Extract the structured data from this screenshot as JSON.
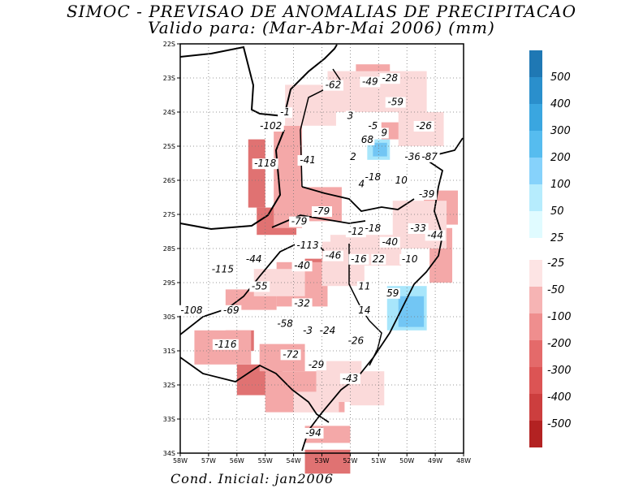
{
  "header": {
    "title": "SIMOC - PREVISAO DE ANOMALIAS DE PRECIPITACAO",
    "subtitle": "Valido para: (Mar-Abr-Mai 2006) (mm)"
  },
  "footer": {
    "text": "Cond. Inicial: jan2006"
  },
  "chart_data": {
    "type": "heatmap",
    "title": "SIMOC - PREVISAO DE ANOMALIAS DE PRECIPITACAO",
    "subtitle": "Valido para: (Mar-Abr-Mai 2006) (mm)",
    "xlim": [
      -58,
      -48
    ],
    "ylim": [
      -34,
      -22
    ],
    "lon_labels": [
      {
        "v": -58,
        "t": "58W"
      },
      {
        "v": -57,
        "t": "57W"
      },
      {
        "v": -56,
        "t": "56W"
      },
      {
        "v": -55,
        "t": "55W"
      },
      {
        "v": -54,
        "t": "54W"
      },
      {
        "v": -53,
        "t": "53W"
      },
      {
        "v": -52,
        "t": "52W"
      },
      {
        "v": -51,
        "t": "51W"
      },
      {
        "v": -50,
        "t": "50W"
      },
      {
        "v": -49,
        "t": "49W"
      },
      {
        "v": -48,
        "t": "48W"
      }
    ],
    "lat_labels": [
      {
        "v": -22,
        "t": "22S"
      },
      {
        "v": -23,
        "t": "23S"
      },
      {
        "v": -24,
        "t": "24S"
      },
      {
        "v": -25,
        "t": "25S"
      },
      {
        "v": -26,
        "t": "26S"
      },
      {
        "v": -27,
        "t": "27S"
      },
      {
        "v": -28,
        "t": "28S"
      },
      {
        "v": -29,
        "t": "29S"
      },
      {
        "v": -30,
        "t": "30S"
      },
      {
        "v": -31,
        "t": "31S"
      },
      {
        "v": -32,
        "t": "32S"
      },
      {
        "v": -33,
        "t": "33S"
      },
      {
        "v": -34,
        "t": "34S"
      }
    ],
    "colorbar": {
      "positive": [
        {
          "label": "500",
          "color": "#1f78b4"
        },
        {
          "label": "400",
          "color": "#2a8fcc"
        },
        {
          "label": "300",
          "color": "#3aa6e0"
        },
        {
          "label": "200",
          "color": "#56bcef"
        },
        {
          "label": "100",
          "color": "#86d2fb"
        },
        {
          "label": "50",
          "color": "#b6ecfd"
        },
        {
          "label": "25",
          "color": "#e0fbff"
        }
      ],
      "negative": [
        {
          "label": "-25",
          "color": "#fde4e4"
        },
        {
          "label": "-50",
          "color": "#f6b4b4"
        },
        {
          "label": "-100",
          "color": "#ef8e8e"
        },
        {
          "label": "-200",
          "color": "#e46a6a"
        },
        {
          "label": "-300",
          "color": "#dc5454"
        },
        {
          "label": "-400",
          "color": "#cc3e3e"
        },
        {
          "label": "-500",
          "color": "#b32222"
        }
      ]
    },
    "regions": [
      {
        "value": -100,
        "color": "#e07272",
        "cells": [
          [
            -55.6,
            -24.8,
            0.6,
            2.0
          ],
          [
            -55.3,
            -26.8,
            1.4,
            0.8
          ],
          [
            -56.0,
            -31.4,
            1.6,
            0.9
          ],
          [
            -56.4,
            -30.4,
            1.0,
            0.6
          ],
          [
            -53.6,
            -33.9,
            1.6,
            0.7
          ],
          [
            -53.6,
            -28.3,
            1.2,
            0.5
          ]
        ]
      },
      {
        "value": -50,
        "color": "#f4a8a8",
        "cells": [
          [
            -54.7,
            -24.4,
            1.0,
            3.0
          ],
          [
            -53.8,
            -26.2,
            1.5,
            1.0
          ],
          [
            -52.3,
            -23.1,
            1.5,
            0.9
          ],
          [
            -54.6,
            -28.4,
            1.8,
            1.3
          ],
          [
            -57.5,
            -30.4,
            2.0,
            1.0
          ],
          [
            -56.4,
            -29.2,
            1.8,
            0.6
          ],
          [
            -55.2,
            -30.8,
            1.6,
            0.8
          ],
          [
            -55.0,
            -31.6,
            2.8,
            1.2
          ],
          [
            -53.6,
            -33.2,
            1.6,
            0.5
          ],
          [
            -49.4,
            -26.3,
            1.2,
            1.0
          ],
          [
            -49.2,
            -27.4,
            0.8,
            1.6
          ],
          [
            -51.8,
            -22.6,
            1.2,
            0.5
          ],
          [
            -50.9,
            -24.3,
            1.2,
            0.5
          ]
        ]
      },
      {
        "value": -25,
        "color": "#fbdada",
        "cells": [
          [
            -54.3,
            -23.2,
            1.8,
            1.2
          ],
          [
            -52.8,
            -22.8,
            3.5,
            1.2
          ],
          [
            -50.3,
            -24.0,
            1.6,
            1.0
          ],
          [
            -50.5,
            -26.6,
            1.9,
            1.4
          ],
          [
            -52.7,
            -27.6,
            2.5,
            0.9
          ],
          [
            -53.0,
            -27.8,
            1.5,
            1.3
          ],
          [
            -53.2,
            -31.3,
            1.6,
            1.2
          ],
          [
            -52.0,
            -31.6,
            1.2,
            1.0
          ],
          [
            -54.0,
            -32.2,
            1.6,
            0.6
          ],
          [
            -55.4,
            -28.6,
            1.8,
            0.8
          ]
        ]
      },
      {
        "value": 50,
        "color": "#a8e6fb",
        "cells": [
          [
            -51.4,
            -24.8,
            0.8,
            0.6
          ],
          [
            -50.7,
            -29.1,
            1.4,
            1.3
          ]
        ]
      },
      {
        "value": 100,
        "color": "#72c6f4",
        "cells": [
          [
            -51.2,
            -24.9,
            0.5,
            0.4
          ],
          [
            -50.3,
            -29.4,
            0.9,
            0.9
          ]
        ]
      }
    ],
    "annotations": [
      {
        "lon": -52.6,
        "lat": -23.3,
        "t": "-62"
      },
      {
        "lon": -51.3,
        "lat": -23.2,
        "t": "-49"
      },
      {
        "lon": -50.6,
        "lat": -23.1,
        "t": "-28"
      },
      {
        "lon": -50.4,
        "lat": -23.8,
        "t": "-59"
      },
      {
        "lon": -54.3,
        "lat": -24.1,
        "t": "-1"
      },
      {
        "lon": -52.0,
        "lat": -24.2,
        "t": "3"
      },
      {
        "lon": -51.2,
        "lat": -24.5,
        "t": "-5"
      },
      {
        "lon": -54.8,
        "lat": -24.5,
        "t": "-102"
      },
      {
        "lon": -50.8,
        "lat": -24.7,
        "t": "9"
      },
      {
        "lon": -49.4,
        "lat": -24.5,
        "t": "-26"
      },
      {
        "lon": -51.4,
        "lat": -24.9,
        "t": "68"
      },
      {
        "lon": -49.8,
        "lat": -25.4,
        "t": "-36"
      },
      {
        "lon": -49.2,
        "lat": -25.4,
        "t": "-87"
      },
      {
        "lon": -51.9,
        "lat": -25.4,
        "t": "2"
      },
      {
        "lon": -55.0,
        "lat": -25.6,
        "t": "-118"
      },
      {
        "lon": -53.5,
        "lat": -25.5,
        "t": "-41"
      },
      {
        "lon": -51.2,
        "lat": -26.0,
        "t": "-18"
      },
      {
        "lon": -50.2,
        "lat": -26.1,
        "t": "10"
      },
      {
        "lon": -51.6,
        "lat": -26.2,
        "t": "4"
      },
      {
        "lon": -49.3,
        "lat": -26.5,
        "t": "-39"
      },
      {
        "lon": -53.0,
        "lat": -27.0,
        "t": "-79"
      },
      {
        "lon": -53.8,
        "lat": -27.3,
        "t": "-79"
      },
      {
        "lon": -51.8,
        "lat": -27.6,
        "t": "-12"
      },
      {
        "lon": -51.2,
        "lat": -27.5,
        "t": "-18"
      },
      {
        "lon": -49.6,
        "lat": -27.5,
        "t": "-33"
      },
      {
        "lon": -49.0,
        "lat": -27.7,
        "t": "-44"
      },
      {
        "lon": -50.6,
        "lat": -27.9,
        "t": "-40"
      },
      {
        "lon": -53.5,
        "lat": -28.0,
        "t": "-113"
      },
      {
        "lon": -55.4,
        "lat": -28.4,
        "t": "-44"
      },
      {
        "lon": -52.6,
        "lat": -28.3,
        "t": "-46"
      },
      {
        "lon": -51.7,
        "lat": -28.4,
        "t": "-16"
      },
      {
        "lon": -51.0,
        "lat": -28.4,
        "t": "22"
      },
      {
        "lon": -49.9,
        "lat": -28.4,
        "t": "-10"
      },
      {
        "lon": -56.5,
        "lat": -28.7,
        "t": "-115"
      },
      {
        "lon": -53.7,
        "lat": -28.6,
        "t": "-40"
      },
      {
        "lon": -55.2,
        "lat": -29.2,
        "t": "-55"
      },
      {
        "lon": -51.5,
        "lat": -29.2,
        "t": "11"
      },
      {
        "lon": -50.5,
        "lat": -29.4,
        "t": "59"
      },
      {
        "lon": -53.7,
        "lat": -29.7,
        "t": "-32"
      },
      {
        "lon": -57.6,
        "lat": -29.9,
        "t": "-108"
      },
      {
        "lon": -56.2,
        "lat": -29.9,
        "t": "-69"
      },
      {
        "lon": -51.5,
        "lat": -29.9,
        "t": "14"
      },
      {
        "lon": -54.3,
        "lat": -30.3,
        "t": "-58"
      },
      {
        "lon": -53.5,
        "lat": -30.5,
        "t": "-3"
      },
      {
        "lon": -52.8,
        "lat": -30.5,
        "t": "-24"
      },
      {
        "lon": -51.8,
        "lat": -30.8,
        "t": "-26"
      },
      {
        "lon": -56.4,
        "lat": -30.9,
        "t": "-116"
      },
      {
        "lon": -54.1,
        "lat": -31.2,
        "t": "-72"
      },
      {
        "lon": -53.2,
        "lat": -31.5,
        "t": "-29"
      },
      {
        "lon": -52.0,
        "lat": -31.9,
        "t": "-43"
      },
      {
        "lon": -53.3,
        "lat": -33.5,
        "t": "-94"
      }
    ]
  }
}
